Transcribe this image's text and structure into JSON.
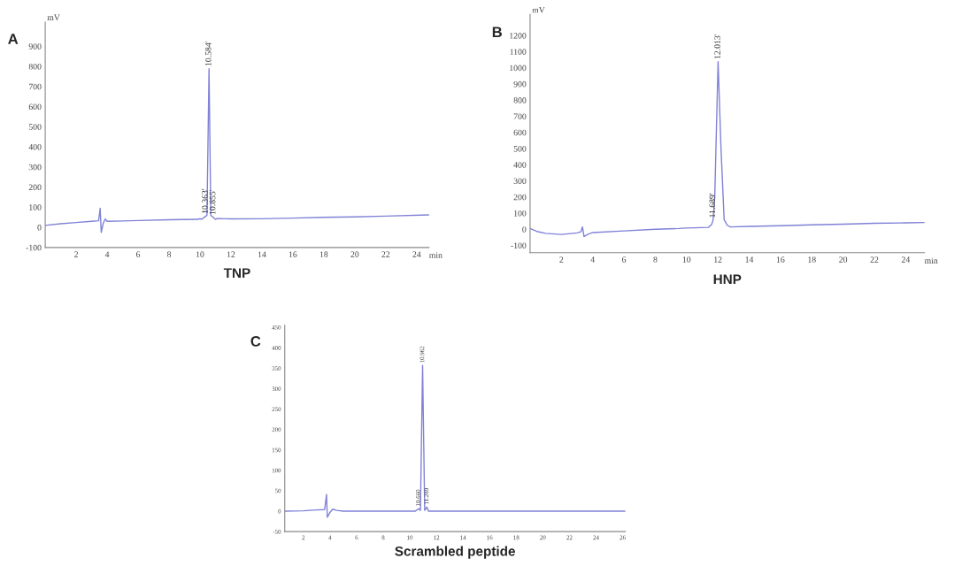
{
  "chart_data": [
    {
      "type": "line",
      "title": "TNP",
      "xlabel": "min",
      "ylabel": "mV",
      "xlim": [
        0,
        24.8
      ],
      "ylim": [
        -100,
        1020
      ],
      "xticks": [
        2,
        4,
        6,
        8,
        10,
        12,
        14,
        16,
        18,
        20,
        22,
        24
      ],
      "yticks": [
        -100,
        0,
        100,
        200,
        300,
        400,
        500,
        600,
        700,
        800,
        900
      ],
      "grid": false,
      "marker": "none",
      "line_style": "solid",
      "series": [
        {
          "color": "#7f82d6",
          "x": [
            0,
            1,
            2,
            3,
            3.45,
            3.55,
            3.62,
            3.75,
            3.88,
            4.0,
            5,
            6,
            8,
            9.9,
            10.0,
            10.1,
            10.363,
            10.45,
            10.584,
            10.7,
            10.855,
            11.0,
            11.1,
            12,
            14,
            16,
            18,
            20,
            22,
            24.8
          ],
          "values": [
            10,
            18,
            24,
            30,
            33,
            95,
            -25,
            20,
            42,
            30,
            32,
            34,
            38,
            40,
            44,
            40,
            55,
            60,
            788,
            60,
            50,
            40,
            44,
            42,
            43,
            46,
            50,
            52,
            56,
            62
          ]
        }
      ],
      "annotations": [
        "A",
        {
          "text": "10.584'",
          "x": 10.584,
          "y": 788
        },
        {
          "text": "10.363'",
          "x": 10.363,
          "y": 55
        },
        {
          "text": "10.855'",
          "x": 10.855,
          "y": 50
        }
      ]
    },
    {
      "type": "line",
      "title": "HNP",
      "xlabel": "min",
      "ylabel": "mV",
      "xlim": [
        0,
        25.2
      ],
      "ylim": [
        -145,
        1330
      ],
      "xticks": [
        2,
        4,
        6,
        8,
        10,
        12,
        14,
        16,
        18,
        20,
        22,
        24
      ],
      "yticks": [
        -100,
        0,
        100,
        200,
        300,
        400,
        500,
        600,
        700,
        800,
        900,
        1000,
        1100,
        1200
      ],
      "grid": false,
      "marker": "none",
      "line_style": "solid",
      "series": [
        {
          "color": "#7f82d6",
          "x": [
            0,
            0.5,
            1,
            2,
            3,
            3.25,
            3.35,
            3.45,
            3.7,
            4,
            6,
            8,
            9.5,
            10,
            11.4,
            11.6,
            11.689,
            11.8,
            12.013,
            12.2,
            12.4,
            12.6,
            12.8,
            14,
            16,
            18,
            20,
            22,
            24,
            25.2
          ],
          "values": [
            5,
            -15,
            -25,
            -32,
            -22,
            -15,
            15,
            -45,
            -30,
            -20,
            -10,
            0,
            5,
            8,
            12,
            30,
            55,
            200,
            1038,
            500,
            60,
            25,
            15,
            18,
            22,
            28,
            32,
            37,
            40,
            42
          ]
        }
      ],
      "annotations": [
        "B",
        {
          "text": "12.013'",
          "x": 12.013,
          "y": 1038
        },
        {
          "text": "11.689'",
          "x": 11.689,
          "y": 55
        }
      ]
    },
    {
      "type": "line",
      "title": "Scrambled peptide",
      "xlim": [
        0.6,
        26.2
      ],
      "ylim": [
        -50,
        455
      ],
      "xticks": [
        2,
        4,
        6,
        8,
        10,
        12,
        14,
        16,
        18,
        20,
        22,
        24,
        26
      ],
      "yticks": [
        -50,
        0,
        50,
        100,
        150,
        200,
        250,
        300,
        350,
        400,
        450
      ],
      "grid": false,
      "marker": "none",
      "line_style": "solid",
      "series": [
        {
          "color": "#7f82d6",
          "x": [
            0.6,
            2,
            3,
            3.6,
            3.74,
            3.8,
            4.0,
            4.2,
            4.5,
            5,
            10.4,
            10.66,
            10.8,
            10.962,
            11.12,
            11.289,
            11.4,
            26.2
          ],
          "values": [
            0,
            1,
            3,
            4,
            41,
            -15,
            -3,
            5,
            2,
            0,
            0,
            6,
            2,
            357,
            2,
            10,
            0,
            0
          ]
        }
      ],
      "annotations": [
        "C",
        {
          "text": "10.962",
          "x": 10.962,
          "y": 357
        },
        {
          "text": "10.660",
          "x": 10.66,
          "y": 6
        },
        {
          "text": "11.289",
          "x": 11.289,
          "y": 10
        }
      ]
    }
  ]
}
